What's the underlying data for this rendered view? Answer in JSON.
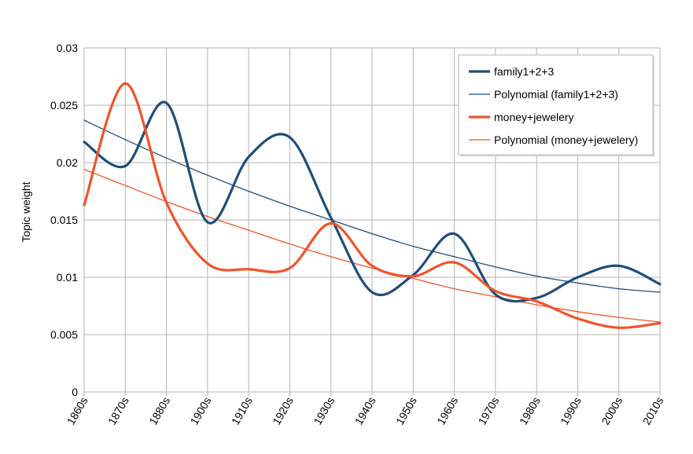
{
  "chart_data": {
    "type": "line",
    "title": "",
    "xlabel": "",
    "ylabel": "Topic weight",
    "categories": [
      "1860s",
      "1870s",
      "1880s",
      "1900s",
      "1910s",
      "1920s",
      "1930s",
      "1940s",
      "1950s",
      "1960s",
      "1970s",
      "1980s",
      "1990s",
      "2000s",
      "2010s"
    ],
    "ylim": [
      0,
      0.03
    ],
    "yticks": [
      0,
      0.005,
      0.01,
      0.015,
      0.02,
      0.025,
      0.03
    ],
    "ytick_labels": [
      "0",
      "0.005",
      "0.01",
      "0.015",
      "0.02",
      "0.025",
      "0.03"
    ],
    "grid": true,
    "legend_position": "top-right",
    "series": [
      {
        "name": "family1+2+3",
        "kind": "data",
        "color": "#1f4e79",
        "values": [
          0.0218,
          0.0197,
          0.0252,
          0.0148,
          0.0205,
          0.0222,
          0.0152,
          0.0087,
          0.0102,
          0.0138,
          0.0085,
          0.0082,
          0.01,
          0.011,
          0.0094
        ]
      },
      {
        "name": "Polynomial (family1+2+3)",
        "kind": "trend",
        "color": "#1f4e79",
        "values": [
          0.0237,
          0.022,
          0.0204,
          0.0189,
          0.0175,
          0.0162,
          0.015,
          0.0138,
          0.0127,
          0.0118,
          0.0109,
          0.0101,
          0.0095,
          0.009,
          0.0087
        ]
      },
      {
        "name": "money+jewelery",
        "kind": "data",
        "color": "#f0542a",
        "values": [
          0.0163,
          0.0269,
          0.0165,
          0.0112,
          0.0107,
          0.0108,
          0.0147,
          0.011,
          0.0101,
          0.0113,
          0.0088,
          0.0079,
          0.0064,
          0.0056,
          0.006
        ]
      },
      {
        "name": "Polynomial (money+jewelery)",
        "kind": "trend",
        "color": "#f0542a",
        "values": [
          0.0194,
          0.018,
          0.0166,
          0.0153,
          0.0141,
          0.0129,
          0.0118,
          0.0108,
          0.0099,
          0.009,
          0.0083,
          0.0076,
          0.007,
          0.0065,
          0.0061
        ]
      }
    ]
  }
}
